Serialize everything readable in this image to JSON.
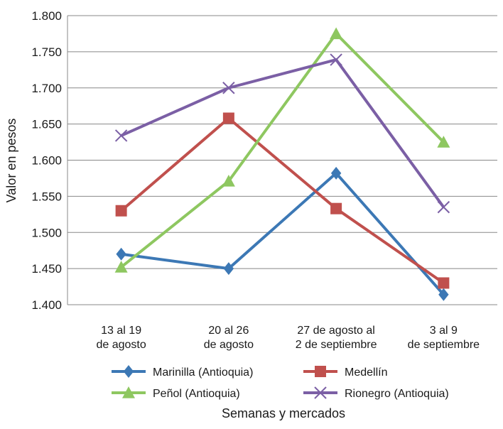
{
  "chart_data": {
    "type": "line",
    "title": "",
    "xlabel": "Semanas y mercados",
    "ylabel": "Valor en pesos",
    "ylim": [
      1400,
      1800
    ],
    "yticks": [
      {
        "value": 1400,
        "label": "1.400"
      },
      {
        "value": 1450,
        "label": "1.450"
      },
      {
        "value": 1500,
        "label": "1.500"
      },
      {
        "value": 1550,
        "label": "1.550"
      },
      {
        "value": 1600,
        "label": "1.600"
      },
      {
        "value": 1650,
        "label": "1.650"
      },
      {
        "value": 1700,
        "label": "1.700"
      },
      {
        "value": 1750,
        "label": "1.750"
      },
      {
        "value": 1800,
        "label": "1.800"
      }
    ],
    "categories": [
      [
        "13 al 19",
        "de agosto"
      ],
      [
        "20 al 26",
        "de agosto"
      ],
      [
        "27 de agosto al",
        "2 de septiembre"
      ],
      [
        "3 al 9",
        "de septiembre"
      ]
    ],
    "grid": true,
    "legend_position": "bottom",
    "series": [
      {
        "name": "Marinilla (Antioquia)",
        "color": "#3c78b5",
        "marker": "diamond",
        "values": [
          1470,
          1450,
          1582,
          1414
        ]
      },
      {
        "name": "Medellín",
        "color": "#c0504d",
        "marker": "square",
        "values": [
          1530,
          1658,
          1533,
          1430
        ]
      },
      {
        "name": "Peñol (Antioquia)",
        "color": "#8ec760",
        "marker": "triangle",
        "values": [
          1452,
          1571,
          1775,
          1625
        ]
      },
      {
        "name": "Rionegro (Antioquia)",
        "color": "#7b5fa5",
        "marker": "x",
        "values": [
          1634,
          1700,
          1739,
          1535
        ]
      }
    ]
  }
}
